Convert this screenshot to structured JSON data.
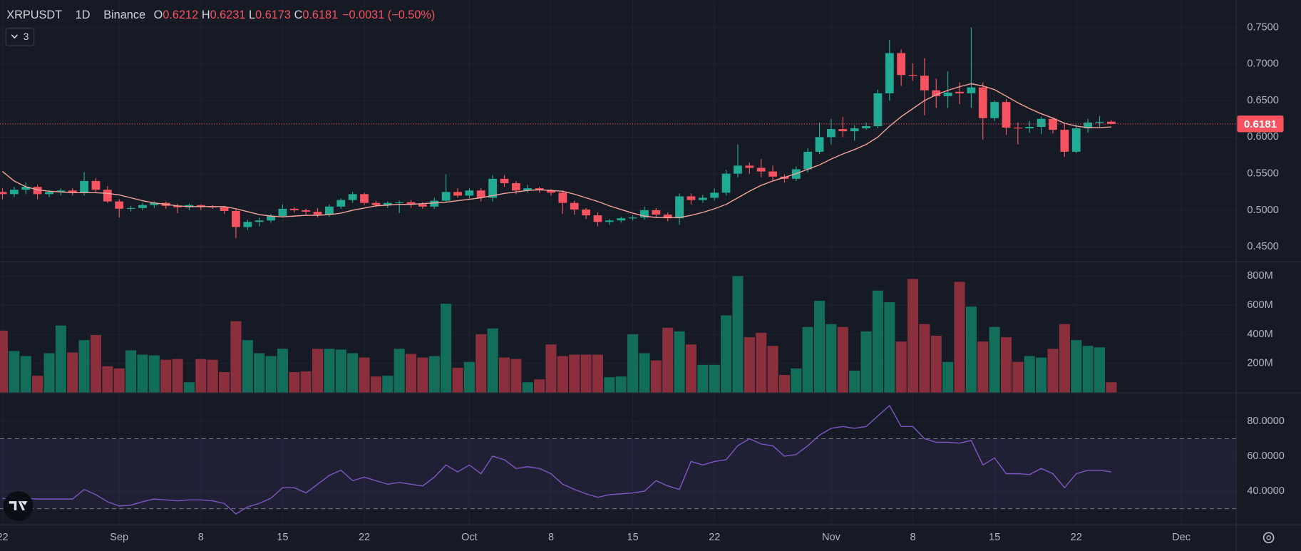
{
  "chart_data": [
    {
      "type": "candlestick",
      "title": "XRPUSDT",
      "interval": "1D",
      "exchange": "Binance",
      "ohlc_labels": [
        "O",
        "H",
        "L",
        "C"
      ],
      "change_label": "−0.0031 (−0.50%)",
      "indicators_count": 3,
      "x": [
        "08-22",
        "08-23",
        "08-24",
        "08-25",
        "08-26",
        "08-27",
        "08-28",
        "08-29",
        "08-30",
        "08-31",
        "09-01",
        "09-02",
        "09-03",
        "09-04",
        "09-05",
        "09-06",
        "09-07",
        "09-08",
        "09-09",
        "09-10",
        "09-11",
        "09-12",
        "09-13",
        "09-14",
        "09-15",
        "09-16",
        "09-17",
        "09-18",
        "09-19",
        "09-20",
        "09-21",
        "09-22",
        "09-23",
        "09-24",
        "09-25",
        "09-26",
        "09-27",
        "09-28",
        "09-29",
        "09-30",
        "10-01",
        "10-02",
        "10-03",
        "10-04",
        "10-05",
        "10-06",
        "10-07",
        "10-08",
        "10-09",
        "10-10",
        "10-11",
        "10-12",
        "10-13",
        "10-14",
        "10-15",
        "10-16",
        "10-17",
        "10-18",
        "10-19",
        "10-20",
        "10-21",
        "10-22",
        "10-23",
        "10-24",
        "10-25",
        "10-26",
        "10-27",
        "10-28",
        "10-29",
        "10-30",
        "10-31",
        "11-01",
        "11-02",
        "11-03",
        "11-04",
        "11-05",
        "11-06",
        "11-07",
        "11-08",
        "11-09",
        "11-10",
        "11-11",
        "11-12",
        "11-13",
        "11-14",
        "11-15",
        "11-16",
        "11-17",
        "11-18",
        "11-19",
        "11-20",
        "11-21",
        "11-22",
        "11-23",
        "11-24",
        "11-25"
      ],
      "open": [
        0.525,
        0.522,
        0.528,
        0.532,
        0.522,
        0.525,
        0.527,
        0.524,
        0.54,
        0.528,
        0.512,
        0.502,
        0.503,
        0.507,
        0.51,
        0.506,
        0.504,
        0.507,
        0.505,
        0.504,
        0.499,
        0.477,
        0.484,
        0.486,
        0.492,
        0.502,
        0.5,
        0.498,
        0.494,
        0.505,
        0.514,
        0.522,
        0.51,
        0.507,
        0.51,
        0.511,
        0.508,
        0.505,
        0.513,
        0.525,
        0.52,
        0.527,
        0.517,
        0.543,
        0.537,
        0.527,
        0.53,
        0.527,
        0.524,
        0.51,
        0.501,
        0.493,
        0.484,
        0.486,
        0.489,
        0.49,
        0.5,
        0.494,
        0.489,
        0.519,
        0.514,
        0.517,
        0.524,
        0.55,
        0.561,
        0.558,
        0.553,
        0.546,
        0.543,
        0.556,
        0.58,
        0.6,
        0.611,
        0.608,
        0.612,
        0.615,
        0.66,
        0.715,
        0.685,
        0.684,
        0.664,
        0.656,
        0.662,
        0.66,
        0.668,
        0.626,
        0.648,
        0.613,
        0.612,
        0.614,
        0.625,
        0.61,
        0.58,
        0.612,
        0.62,
        0.6212
      ],
      "high": [
        0.53,
        0.532,
        0.538,
        0.535,
        0.528,
        0.53,
        0.53,
        0.552,
        0.544,
        0.533,
        0.515,
        0.506,
        0.51,
        0.512,
        0.512,
        0.509,
        0.509,
        0.508,
        0.507,
        0.506,
        0.502,
        0.487,
        0.49,
        0.495,
        0.508,
        0.504,
        0.502,
        0.503,
        0.508,
        0.516,
        0.525,
        0.524,
        0.513,
        0.512,
        0.513,
        0.514,
        0.511,
        0.517,
        0.549,
        0.53,
        0.53,
        0.53,
        0.548,
        0.548,
        0.54,
        0.535,
        0.532,
        0.529,
        0.527,
        0.513,
        0.503,
        0.497,
        0.488,
        0.491,
        0.493,
        0.505,
        0.503,
        0.497,
        0.523,
        0.523,
        0.521,
        0.53,
        0.555,
        0.59,
        0.565,
        0.57,
        0.561,
        0.549,
        0.56,
        0.585,
        0.62,
        0.625,
        0.628,
        0.616,
        0.62,
        0.665,
        0.733,
        0.72,
        0.701,
        0.708,
        0.68,
        0.69,
        0.675,
        0.75,
        0.675,
        0.65,
        0.652,
        0.62,
        0.622,
        0.628,
        0.627,
        0.619,
        0.617,
        0.625,
        0.629,
        0.6231
      ],
      "low": [
        0.515,
        0.518,
        0.522,
        0.515,
        0.518,
        0.52,
        0.52,
        0.52,
        0.524,
        0.51,
        0.49,
        0.498,
        0.5,
        0.503,
        0.502,
        0.496,
        0.5,
        0.5,
        0.502,
        0.495,
        0.462,
        0.473,
        0.478,
        0.483,
        0.49,
        0.497,
        0.494,
        0.49,
        0.491,
        0.502,
        0.51,
        0.507,
        0.504,
        0.503,
        0.496,
        0.503,
        0.502,
        0.502,
        0.51,
        0.517,
        0.516,
        0.512,
        0.512,
        0.532,
        0.522,
        0.524,
        0.524,
        0.52,
        0.495,
        0.494,
        0.488,
        0.478,
        0.48,
        0.483,
        0.486,
        0.487,
        0.49,
        0.485,
        0.48,
        0.508,
        0.51,
        0.513,
        0.52,
        0.545,
        0.55,
        0.545,
        0.541,
        0.538,
        0.54,
        0.552,
        0.577,
        0.59,
        0.6,
        0.595,
        0.61,
        0.612,
        0.65,
        0.67,
        0.677,
        0.63,
        0.64,
        0.64,
        0.645,
        0.64,
        0.597,
        0.622,
        0.603,
        0.59,
        0.606,
        0.604,
        0.605,
        0.573,
        0.578,
        0.606,
        0.614,
        0.6173
      ],
      "close": [
        0.522,
        0.528,
        0.532,
        0.522,
        0.525,
        0.527,
        0.524,
        0.54,
        0.528,
        0.512,
        0.502,
        0.503,
        0.507,
        0.51,
        0.506,
        0.504,
        0.507,
        0.505,
        0.504,
        0.499,
        0.477,
        0.484,
        0.486,
        0.492,
        0.502,
        0.5,
        0.498,
        0.494,
        0.505,
        0.514,
        0.522,
        0.51,
        0.507,
        0.51,
        0.511,
        0.508,
        0.505,
        0.513,
        0.525,
        0.52,
        0.527,
        0.517,
        0.543,
        0.537,
        0.527,
        0.53,
        0.527,
        0.524,
        0.51,
        0.501,
        0.493,
        0.484,
        0.486,
        0.489,
        0.49,
        0.5,
        0.494,
        0.489,
        0.519,
        0.514,
        0.517,
        0.524,
        0.55,
        0.561,
        0.558,
        0.553,
        0.546,
        0.543,
        0.556,
        0.58,
        0.6,
        0.611,
        0.608,
        0.612,
        0.615,
        0.66,
        0.715,
        0.685,
        0.684,
        0.664,
        0.656,
        0.661,
        0.66,
        0.668,
        0.626,
        0.648,
        0.613,
        0.612,
        0.614,
        0.625,
        0.61,
        0.58,
        0.612,
        0.62,
        0.621,
        0.6181
      ],
      "ma": {
        "color": "#f5a49b",
        "values": [
          0.553,
          0.54,
          0.532,
          0.528,
          0.526,
          0.525,
          0.524,
          0.524,
          0.524,
          0.523,
          0.521,
          0.517,
          0.513,
          0.51,
          0.508,
          0.506,
          0.505,
          0.505,
          0.505,
          0.505,
          0.502,
          0.498,
          0.494,
          0.492,
          0.491,
          0.492,
          0.493,
          0.493,
          0.494,
          0.496,
          0.5,
          0.503,
          0.506,
          0.507,
          0.508,
          0.508,
          0.509,
          0.51,
          0.511,
          0.513,
          0.515,
          0.517,
          0.52,
          0.523,
          0.525,
          0.527,
          0.528,
          0.527,
          0.526,
          0.522,
          0.517,
          0.512,
          0.506,
          0.501,
          0.496,
          0.492,
          0.49,
          0.49,
          0.49,
          0.493,
          0.497,
          0.502,
          0.508,
          0.517,
          0.526,
          0.534,
          0.54,
          0.545,
          0.55,
          0.556,
          0.562,
          0.57,
          0.577,
          0.583,
          0.59,
          0.6,
          0.615,
          0.628,
          0.639,
          0.65,
          0.658,
          0.664,
          0.669,
          0.673,
          0.67,
          0.665,
          0.656,
          0.647,
          0.639,
          0.632,
          0.626,
          0.619,
          0.615,
          0.613,
          0.613,
          0.614
        ]
      },
      "up_color": "#22ab94",
      "down_color": "#f7525f",
      "xlim": [
        "08-22",
        "12-05"
      ],
      "xticks": [
        {
          "value": "08-22",
          "label": "22"
        },
        {
          "value": "09-01",
          "label": "Sep"
        },
        {
          "value": "09-08",
          "label": "8"
        },
        {
          "value": "09-15",
          "label": "15"
        },
        {
          "value": "09-22",
          "label": "22"
        },
        {
          "value": "10-01",
          "label": "Oct"
        },
        {
          "value": "10-08",
          "label": "8"
        },
        {
          "value": "10-15",
          "label": "15"
        },
        {
          "value": "10-22",
          "label": "22"
        },
        {
          "value": "11-01",
          "label": "Nov"
        },
        {
          "value": "11-08",
          "label": "8"
        },
        {
          "value": "11-15",
          "label": "15"
        },
        {
          "value": "11-22",
          "label": "22"
        },
        {
          "value": "12-01",
          "label": "Dec"
        }
      ],
      "ylim": [
        0.43,
        0.7875
      ],
      "yticks": [
        {
          "value": 0.45,
          "label": "0.4500"
        },
        {
          "value": 0.5,
          "label": "0.5000"
        },
        {
          "value": 0.55,
          "label": "0.5500"
        },
        {
          "value": 0.6,
          "label": "0.6000"
        },
        {
          "value": 0.65,
          "label": "0.6500"
        },
        {
          "value": 0.7,
          "label": "0.7000"
        },
        {
          "value": 0.75,
          "label": "0.7500"
        }
      ],
      "grid": true
    },
    {
      "type": "bar",
      "values": [
        425,
        285,
        250,
        115,
        270,
        460,
        275,
        360,
        395,
        180,
        165,
        290,
        260,
        255,
        225,
        230,
        70,
        230,
        225,
        140,
        490,
        360,
        270,
        250,
        300,
        140,
        145,
        300,
        300,
        295,
        270,
        240,
        110,
        115,
        300,
        265,
        240,
        250,
        610,
        170,
        210,
        400,
        440,
        240,
        230,
        70,
        90,
        330,
        250,
        260,
        260,
        260,
        105,
        110,
        400,
        270,
        220,
        445,
        420,
        330,
        190,
        190,
        530,
        800,
        380,
        410,
        320,
        120,
        165,
        450,
        630,
        470,
        450,
        150,
        420,
        700,
        620,
        350,
        780,
        470,
        390,
        210,
        760,
        590,
        350,
        450,
        380,
        210,
        250,
        240,
        300,
        470,
        360,
        320,
        310,
        70
      ],
      "up_color": "#126e58",
      "down_color": "#8c2f3c",
      "ylim": [
        0,
        895
      ],
      "yticks": [
        {
          "value": 200,
          "label": "200M"
        },
        {
          "value": 400,
          "label": "400M"
        },
        {
          "value": 600,
          "label": "600M"
        },
        {
          "value": 800,
          "label": "800M"
        }
      ]
    },
    {
      "type": "line",
      "color": "#7e57c2",
      "values": [
        36,
        35,
        36,
        35.5,
        35.5,
        35.5,
        35.5,
        41,
        38,
        34,
        31.5,
        32,
        34,
        35.5,
        35,
        34.5,
        35,
        35,
        34.5,
        33,
        27,
        31,
        33,
        36,
        42,
        42,
        39,
        44,
        49,
        52,
        46,
        48,
        46,
        44,
        45,
        44,
        43,
        48,
        55,
        51,
        55,
        50,
        60,
        58,
        53,
        54,
        53,
        50,
        44,
        41,
        38.5,
        36.5,
        38,
        38.5,
        39,
        40,
        46,
        43,
        41,
        57,
        55,
        57,
        58,
        66,
        70,
        67,
        66,
        60,
        61,
        66,
        72,
        76,
        77,
        76,
        77,
        83,
        89,
        77,
        77,
        70,
        68,
        68,
        67.5,
        69,
        55,
        59,
        50,
        50,
        49.5,
        53,
        50,
        42,
        50,
        52,
        52,
        51
      ],
      "bands": [
        30,
        70
      ],
      "ylim": [
        21,
        96
      ],
      "yticks": [
        {
          "value": 40,
          "label": "40.0000"
        },
        {
          "value": 60,
          "label": "60.0000"
        },
        {
          "value": 80,
          "label": "80.0000"
        }
      ]
    }
  ]
}
